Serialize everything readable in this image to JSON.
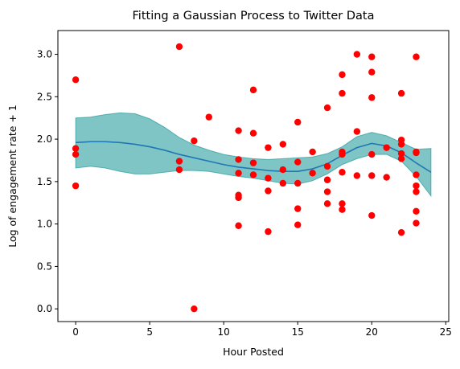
{
  "chart_data": {
    "type": "scatter",
    "title": "Fitting a Gaussian Process to Twitter Data",
    "xlabel": "Hour Posted",
    "ylabel": "Log of engagement rate + 1",
    "xlim": [
      -1.2,
      25.2
    ],
    "ylim": [
      -0.15,
      3.28
    ],
    "x_ticks": [
      0,
      5,
      10,
      15,
      20,
      25
    ],
    "y_ticks": [
      0.0,
      0.5,
      1.0,
      1.5,
      2.0,
      2.5,
      3.0
    ],
    "x_tick_labels": [
      "0",
      "5",
      "10",
      "15",
      "20",
      "25"
    ],
    "y_tick_labels": [
      "0.0",
      "0.5",
      "1.0",
      "1.5",
      "2.0",
      "2.5",
      "3.0"
    ],
    "grid": false,
    "legend": "none",
    "colors": {
      "points": "#ff0000",
      "mean_line": "#1f77b4",
      "band": "#008b8b",
      "band_edge": "#008b8b"
    },
    "band_opacity": 0.5,
    "points": [
      [
        0,
        2.7
      ],
      [
        0,
        1.89
      ],
      [
        0,
        1.82
      ],
      [
        0,
        1.45
      ],
      [
        7,
        3.09
      ],
      [
        7,
        1.74
      ],
      [
        7,
        1.64
      ],
      [
        8,
        1.98
      ],
      [
        8,
        0.0
      ],
      [
        9,
        2.26
      ],
      [
        11,
        2.1
      ],
      [
        11,
        1.76
      ],
      [
        11,
        1.6
      ],
      [
        11,
        1.34
      ],
      [
        11,
        1.31
      ],
      [
        11,
        0.98
      ],
      [
        12,
        2.58
      ],
      [
        12,
        2.07
      ],
      [
        12,
        1.72
      ],
      [
        12,
        1.58
      ],
      [
        13,
        1.9
      ],
      [
        13,
        1.54
      ],
      [
        13,
        1.39
      ],
      [
        13,
        0.91
      ],
      [
        14,
        1.94
      ],
      [
        14,
        1.64
      ],
      [
        14,
        1.48
      ],
      [
        15,
        2.2
      ],
      [
        15,
        1.73
      ],
      [
        15,
        1.48
      ],
      [
        15,
        1.18
      ],
      [
        15,
        0.99
      ],
      [
        16,
        1.85
      ],
      [
        16,
        1.6
      ],
      [
        17,
        2.37
      ],
      [
        17,
        1.68
      ],
      [
        17,
        1.52
      ],
      [
        17,
        1.38
      ],
      [
        17,
        1.24
      ],
      [
        18,
        2.76
      ],
      [
        18,
        2.54
      ],
      [
        18,
        1.85
      ],
      [
        18,
        1.82
      ],
      [
        18,
        1.61
      ],
      [
        18,
        1.24
      ],
      [
        18,
        1.17
      ],
      [
        19,
        3.0
      ],
      [
        19,
        2.09
      ],
      [
        19,
        1.57
      ],
      [
        20,
        2.97
      ],
      [
        20,
        2.79
      ],
      [
        20,
        2.49
      ],
      [
        20,
        1.82
      ],
      [
        20,
        1.57
      ],
      [
        20,
        1.1
      ],
      [
        21,
        1.9
      ],
      [
        21,
        1.55
      ],
      [
        22,
        2.54
      ],
      [
        22,
        1.99
      ],
      [
        22,
        1.94
      ],
      [
        22,
        1.83
      ],
      [
        22,
        1.77
      ],
      [
        22,
        0.9
      ],
      [
        23,
        2.97
      ],
      [
        23,
        1.85
      ],
      [
        23,
        1.84
      ],
      [
        23,
        1.58
      ],
      [
        23,
        1.45
      ],
      [
        23,
        1.38
      ],
      [
        23,
        1.15
      ],
      [
        23,
        1.01
      ]
    ],
    "series": [
      {
        "kind": "line",
        "x": [
          0,
          1,
          2,
          3,
          4,
          5,
          6,
          7,
          8,
          9,
          10,
          11,
          12,
          13,
          14,
          15,
          16,
          17,
          18,
          19,
          20,
          21,
          22,
          23,
          24
        ],
        "values": [
          1.96,
          1.97,
          1.97,
          1.96,
          1.94,
          1.91,
          1.87,
          1.82,
          1.78,
          1.74,
          1.7,
          1.67,
          1.65,
          1.63,
          1.62,
          1.62,
          1.65,
          1.71,
          1.81,
          1.9,
          1.95,
          1.92,
          1.84,
          1.72,
          1.61
        ]
      },
      {
        "kind": "band",
        "x": [
          0,
          1,
          2,
          3,
          4,
          5,
          6,
          7,
          8,
          9,
          10,
          11,
          12,
          13,
          14,
          15,
          16,
          17,
          18,
          19,
          20,
          21,
          22,
          23,
          24
        ],
        "upper": [
          2.25,
          2.26,
          2.29,
          2.31,
          2.3,
          2.24,
          2.14,
          2.02,
          1.93,
          1.87,
          1.82,
          1.79,
          1.77,
          1.76,
          1.77,
          1.78,
          1.79,
          1.83,
          1.91,
          2.03,
          2.08,
          2.04,
          1.96,
          1.88,
          1.89
        ],
        "lower": [
          1.66,
          1.68,
          1.66,
          1.62,
          1.59,
          1.59,
          1.61,
          1.63,
          1.63,
          1.62,
          1.59,
          1.56,
          1.54,
          1.51,
          1.48,
          1.47,
          1.51,
          1.59,
          1.7,
          1.77,
          1.82,
          1.82,
          1.74,
          1.56,
          1.33
        ]
      }
    ]
  }
}
